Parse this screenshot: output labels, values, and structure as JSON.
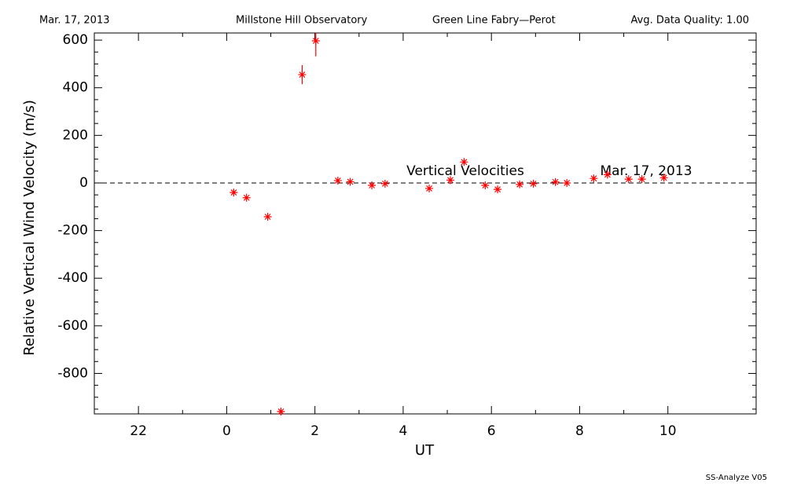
{
  "header": {
    "date": "Mar. 17, 2013",
    "site": "Millstone Hill Observatory",
    "instrument": "Green Line Fabry—Perot",
    "quality": "Avg. Data Quality: 1.00"
  },
  "footer": "SS-Analyze V05",
  "chart_data": {
    "type": "scatter",
    "x_label": "UT",
    "y_label": "Relative Vertical Wind Velocity (m/s)",
    "annotations": [
      "Vertical Velocities",
      "Mar. 17, 2013"
    ],
    "x": [
      0.16,
      0.45,
      0.93,
      1.23,
      1.71,
      2.02,
      2.52,
      2.8,
      3.29,
      3.59,
      4.59,
      5.07,
      5.38,
      5.86,
      6.14,
      6.64,
      6.95,
      7.45,
      7.71,
      8.32,
      8.63,
      9.11,
      9.41,
      9.91
    ],
    "values": [
      -40,
      -62,
      -142,
      -960,
      455,
      597,
      10,
      5,
      -10,
      -3,
      -23,
      12,
      88,
      -10,
      -27,
      -6,
      -3,
      4,
      0,
      19,
      35,
      16,
      16,
      22
    ],
    "errors": [
      null,
      null,
      null,
      null,
      40,
      65,
      null,
      null,
      null,
      null,
      null,
      null,
      null,
      null,
      null,
      null,
      null,
      null,
      null,
      null,
      null,
      null,
      null,
      null
    ],
    "color": "#ff0000",
    "reference_line": 0,
    "xlim": [
      -3,
      12
    ],
    "xticks": [
      {
        "value": -2,
        "label": "22"
      },
      0,
      2,
      4,
      6,
      8,
      10
    ],
    "ylim": [
      -970,
      630
    ],
    "yticks": [
      -800,
      -600,
      -400,
      -200,
      0,
      200,
      400,
      600
    ]
  }
}
